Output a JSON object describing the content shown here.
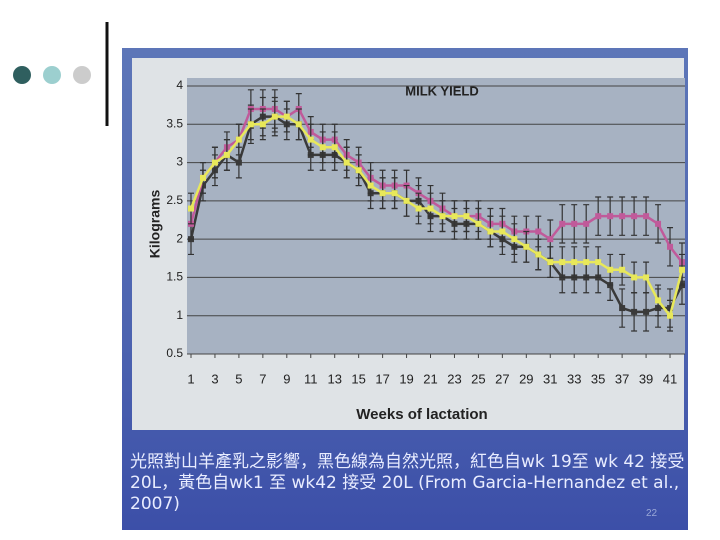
{
  "chart_data": {
    "type": "line",
    "title": "MILK YIELD",
    "y_label": "Kilograms",
    "x_label": "Weeks of lactation",
    "x": [
      1,
      2,
      3,
      4,
      5,
      6,
      7,
      8,
      9,
      10,
      11,
      12,
      13,
      14,
      15,
      16,
      17,
      18,
      19,
      20,
      21,
      22,
      23,
      24,
      25,
      26,
      27,
      28,
      29,
      30,
      31,
      32,
      33,
      34,
      35,
      36,
      37,
      38,
      39,
      40,
      41,
      42
    ],
    "xlim": [
      1,
      42
    ],
    "xticks": [
      1,
      3,
      5,
      7,
      9,
      11,
      13,
      15,
      17,
      19,
      21,
      23,
      25,
      27,
      29,
      31,
      33,
      35,
      37,
      39,
      41
    ],
    "ylim": [
      0.5,
      4
    ],
    "yticks": [
      0.5,
      1,
      1.5,
      2,
      2.5,
      3,
      3.5,
      4
    ],
    "grid": true,
    "series": [
      {
        "color": "#3a3a3a",
        "values": [
          2.0,
          2.7,
          2.9,
          3.1,
          3.0,
          3.5,
          3.6,
          3.6,
          3.5,
          3.5,
          3.1,
          3.1,
          3.1,
          3.0,
          2.9,
          2.6,
          2.6,
          2.6,
          2.5,
          2.5,
          2.3,
          2.3,
          2.2,
          2.2,
          2.2,
          2.1,
          2.0,
          1.9,
          1.9,
          1.8,
          1.7,
          1.5,
          1.5,
          1.5,
          1.5,
          1.4,
          1.1,
          1.05,
          1.05,
          1.1,
          1.1,
          1.4
        ],
        "errors": [
          0.2,
          0.2,
          0.2,
          0.2,
          0.2,
          0.25,
          0.25,
          0.25,
          0.2,
          0.2,
          0.2,
          0.2,
          0.2,
          0.2,
          0.2,
          0.2,
          0.2,
          0.2,
          0.2,
          0.2,
          0.2,
          0.2,
          0.2,
          0.2,
          0.2,
          0.2,
          0.2,
          0.2,
          0.2,
          0.2,
          0.2,
          0.2,
          0.2,
          0.2,
          0.2,
          0.2,
          0.25,
          0.25,
          0.25,
          0.25,
          0.25,
          0.25
        ]
      },
      {
        "color": "#c05a9a",
        "values": [
          2.2,
          2.8,
          3.0,
          3.2,
          3.3,
          3.7,
          3.7,
          3.7,
          3.6,
          3.7,
          3.4,
          3.3,
          3.3,
          3.1,
          3.0,
          2.8,
          2.7,
          2.7,
          2.7,
          2.6,
          2.5,
          2.4,
          2.3,
          2.3,
          2.3,
          2.2,
          2.2,
          2.1,
          2.1,
          2.1,
          2.0,
          2.2,
          2.2,
          2.2,
          2.3,
          2.3,
          2.3,
          2.3,
          2.3,
          2.2,
          1.9,
          1.7
        ],
        "errors": [
          0.2,
          0.2,
          0.2,
          0.2,
          0.2,
          0.25,
          0.25,
          0.25,
          0.2,
          0.2,
          0.2,
          0.2,
          0.2,
          0.2,
          0.2,
          0.2,
          0.2,
          0.2,
          0.2,
          0.2,
          0.2,
          0.2,
          0.2,
          0.2,
          0.2,
          0.2,
          0.2,
          0.2,
          0.2,
          0.2,
          0.25,
          0.25,
          0.25,
          0.25,
          0.25,
          0.25,
          0.25,
          0.25,
          0.25,
          0.25,
          0.25,
          0.25
        ]
      },
      {
        "color": "#e8e85a",
        "values": [
          2.4,
          2.8,
          3.0,
          3.1,
          3.3,
          3.5,
          3.5,
          3.6,
          3.6,
          3.5,
          3.3,
          3.2,
          3.2,
          3.0,
          2.9,
          2.7,
          2.6,
          2.6,
          2.5,
          2.4,
          2.4,
          2.3,
          2.3,
          2.3,
          2.2,
          2.1,
          2.1,
          2.0,
          1.9,
          1.8,
          1.7,
          1.7,
          1.7,
          1.7,
          1.7,
          1.6,
          1.6,
          1.5,
          1.5,
          1.2,
          1.0,
          1.6
        ],
        "errors": [
          0.2,
          0.2,
          0.2,
          0.2,
          0.2,
          0.2,
          0.2,
          0.2,
          0.2,
          0.2,
          0.2,
          0.2,
          0.2,
          0.2,
          0.2,
          0.2,
          0.2,
          0.2,
          0.2,
          0.2,
          0.2,
          0.2,
          0.2,
          0.2,
          0.2,
          0.2,
          0.2,
          0.2,
          0.2,
          0.2,
          0.2,
          0.2,
          0.2,
          0.2,
          0.2,
          0.2,
          0.2,
          0.2,
          0.2,
          0.2,
          0.2,
          0.2
        ]
      }
    ]
  },
  "caption": "光照對山羊產乳之影響，黑色線為自然光照，紅色自wk 19至 wk 42 接受 20L，黃色自wk1 至 wk42 接受 20L (From Garcia-Hernandez et al., 2007)",
  "page_number": "22"
}
